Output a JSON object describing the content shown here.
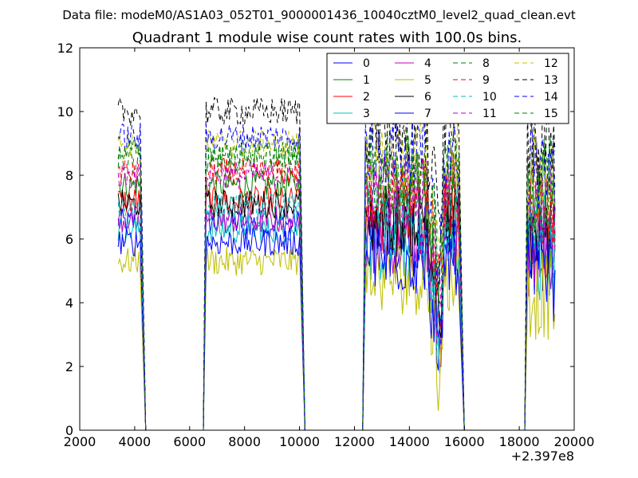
{
  "suptitle": "Data file: modeM0/AS1A03_052T01_9000001436_10040cztM0_level2_quad_clean.evt",
  "chart_data": {
    "type": "line",
    "title": "Quadrant 1 module wise count rates with 100.0s bins.",
    "xlabel": "",
    "ylabel": "",
    "x_offset_label": "+2.397e8",
    "xlim": [
      2000,
      20000
    ],
    "ylim": [
      0,
      12
    ],
    "xticks": [
      2000,
      4000,
      6000,
      8000,
      10000,
      12000,
      14000,
      16000,
      18000,
      20000
    ],
    "yticks": [
      0,
      2,
      4,
      6,
      8,
      10,
      12
    ],
    "grid": false,
    "legend_placement": "top-right",
    "legend_columns": 4,
    "segments": [
      {
        "start": 3400,
        "end": 4200,
        "off": 4400
      },
      {
        "on": 6500,
        "start": 6600,
        "end": 10000,
        "off": 10200
      },
      {
        "on": 12300,
        "start": 12400,
        "end": 15800,
        "off": 16000
      },
      {
        "on": 18200,
        "start": 18300,
        "end": 19300
      }
    ],
    "series": [
      {
        "name": "0",
        "color": "#0000ff",
        "dash": "solid",
        "level": 6.5
      },
      {
        "name": "1",
        "color": "#008000",
        "dash": "solid",
        "level": 7.7
      },
      {
        "name": "2",
        "color": "#ff0000",
        "dash": "solid",
        "level": 7.2
      },
      {
        "name": "3",
        "color": "#00bfbf",
        "dash": "solid",
        "level": 6.3
      },
      {
        "name": "4",
        "color": "#bf00bf",
        "dash": "solid",
        "level": 6.6
      },
      {
        "name": "5",
        "color": "#bfbf00",
        "dash": "solid",
        "level": 5.3
      },
      {
        "name": "6",
        "color": "#000000",
        "dash": "solid",
        "level": 7.1
      },
      {
        "name": "7",
        "color": "#0000ff",
        "dash": "solid",
        "level": 5.9
      },
      {
        "name": "8",
        "color": "#008000",
        "dash": "dashed",
        "level": 8.5
      },
      {
        "name": "9",
        "color": "#ff0000",
        "dash": "dashed",
        "level": 8.1
      },
      {
        "name": "10",
        "color": "#00bfbf",
        "dash": "dashed",
        "level": 7.0
      },
      {
        "name": "11",
        "color": "#bf00bf",
        "dash": "dashed",
        "level": 8.0
      },
      {
        "name": "12",
        "color": "#bfbf00",
        "dash": "dashed",
        "level": 9.0
      },
      {
        "name": "13",
        "color": "#000000",
        "dash": "dashed",
        "level": 10.0
      },
      {
        "name": "14",
        "color": "#0000ff",
        "dash": "dashed",
        "level": 9.2
      },
      {
        "name": "15",
        "color": "#008000",
        "dash": "dashed",
        "level": 8.7
      }
    ]
  }
}
